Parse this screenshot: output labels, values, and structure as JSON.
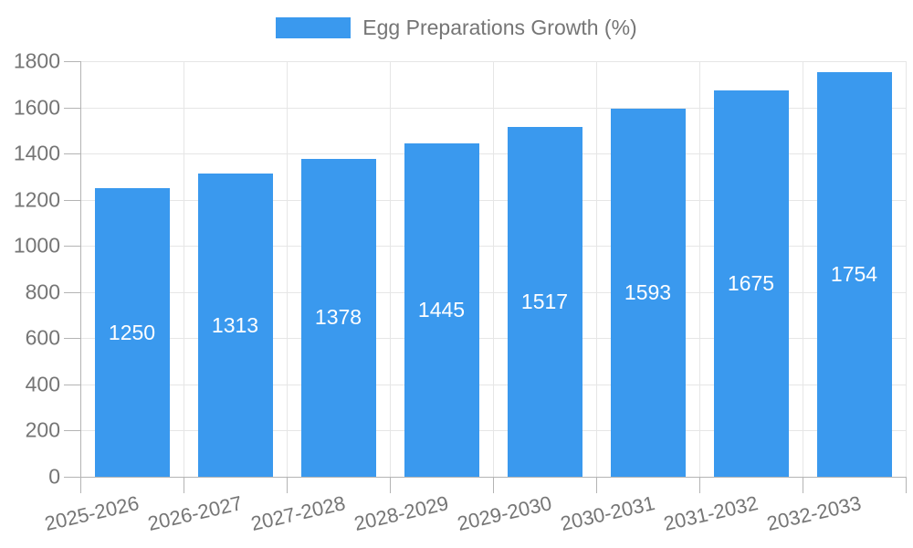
{
  "chart_data": {
    "type": "bar",
    "title": "",
    "legend": {
      "label": "Egg Preparations Growth (%)",
      "position": "top"
    },
    "categories": [
      "2025-2026",
      "2026-2027",
      "2027-2028",
      "2028-2029",
      "2029-2030",
      "2030-2031",
      "2031-2032",
      "2032-2033"
    ],
    "values": [
      1250,
      1313,
      1378,
      1445,
      1517,
      1593,
      1675,
      1754
    ],
    "value_labels": [
      "1250",
      "1313",
      "1378",
      "1445",
      "1517",
      "1593",
      "1675",
      "1754"
    ],
    "xlabel": "",
    "ylabel": "",
    "ylim": [
      0,
      1800
    ],
    "yticks": [
      0,
      200,
      400,
      600,
      800,
      1000,
      1200,
      1400,
      1600,
      1800
    ],
    "grid": true,
    "x_label_rotation_deg": -13,
    "legend_visible": true,
    "colors": {
      "bar": "#3A99EE",
      "grid": "#e6e6e6",
      "axis": "#b4b4b4",
      "axis_text": "#757575",
      "legend_text": "#757575",
      "value_text": "#ffffff",
      "background": "#ffffff"
    }
  }
}
